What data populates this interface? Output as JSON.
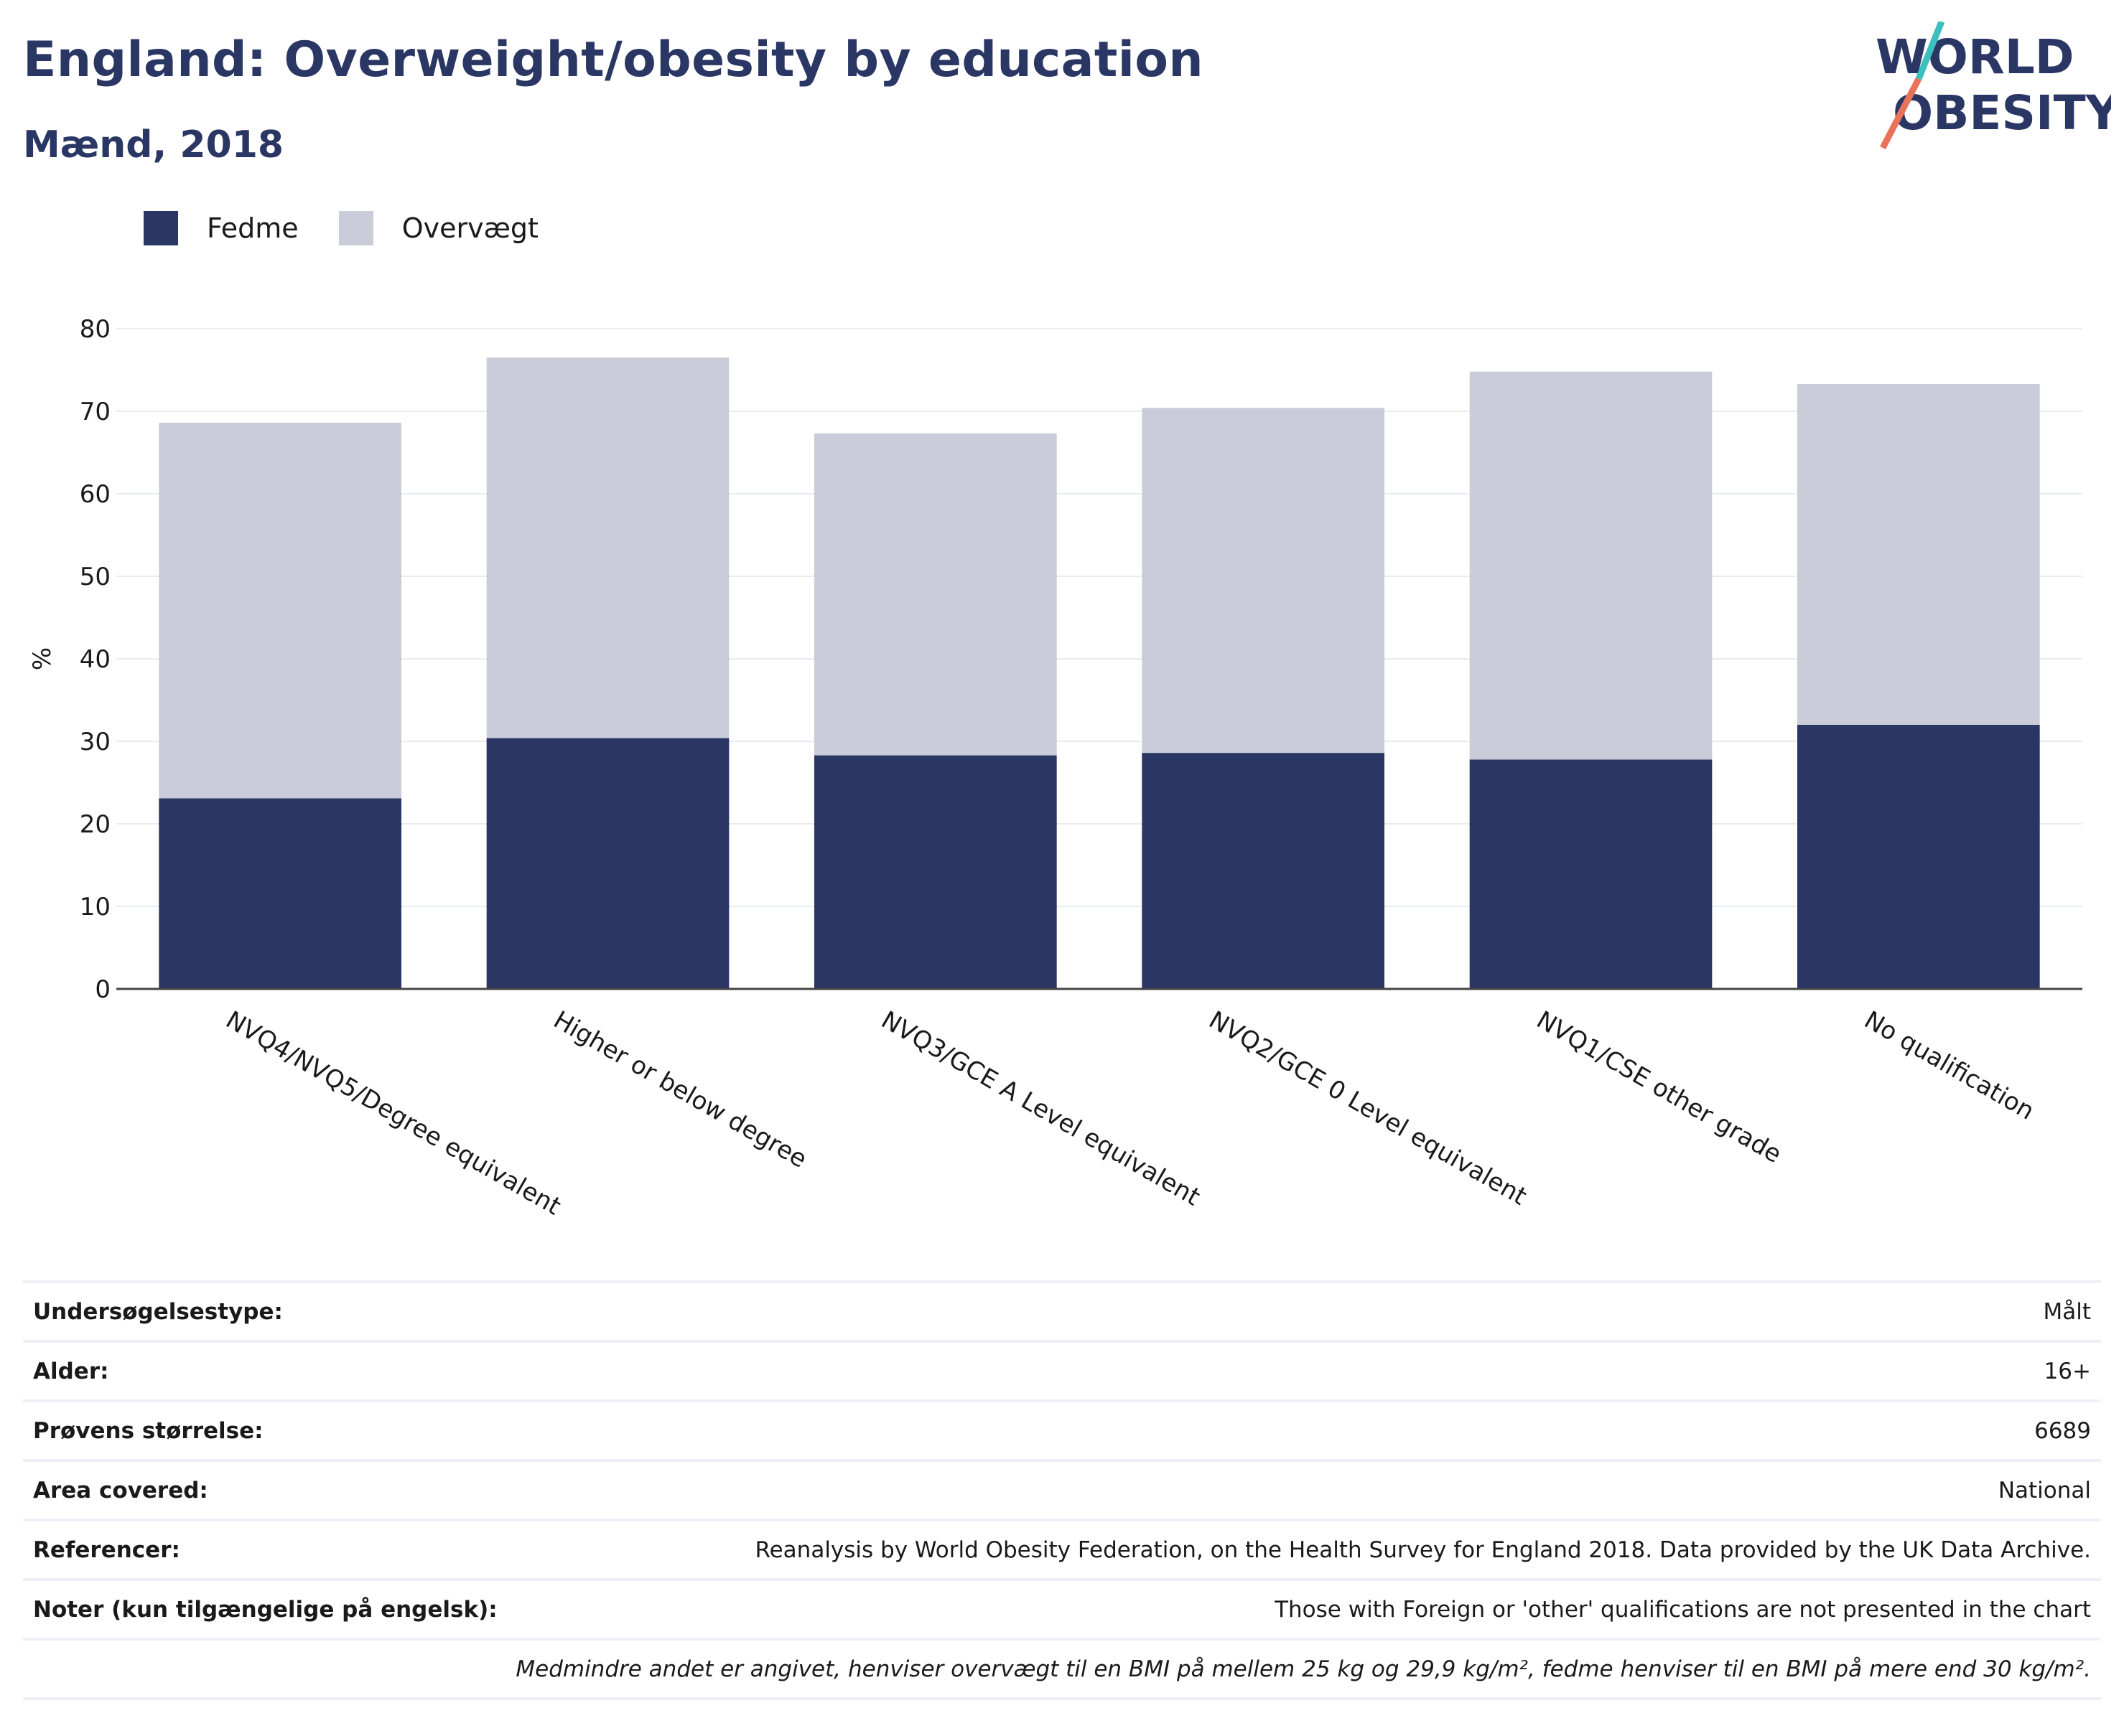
{
  "title": "England: Overweight/obesity by education",
  "subtitle": "Mænd, 2018",
  "logo": {
    "text_line1": "WORLD",
    "text_line2": "OBESITY"
  },
  "colors": {
    "obesity": "#2a3663",
    "overweight": "#cacdd9",
    "title": "#2a3663",
    "logo_teal": "#3bbfbf",
    "logo_coral": "#e8735a"
  },
  "legend": [
    {
      "label": "Fedme",
      "color": "#2a3663"
    },
    {
      "label": "Overvægt",
      "color": "#cacdd9"
    }
  ],
  "chart_data": {
    "type": "bar",
    "stacked": true,
    "categories": [
      "NVQ4/NVQ5/Degree equivalent",
      "Higher or below degree",
      "NVQ3/GCE A Level equivalent",
      "NVQ2/GCE 0 Level equivalent",
      "NVQ1/CSE other grade",
      "No qualification"
    ],
    "series": [
      {
        "name": "Fedme",
        "values": [
          23.1,
          30.4,
          28.3,
          28.6,
          27.8,
          32.0
        ]
      },
      {
        "name": "Overvægt",
        "values": [
          45.5,
          46.1,
          39.0,
          41.8,
          47.0,
          41.3
        ]
      }
    ],
    "ylabel": "%",
    "xlabel": "",
    "ylim": [
      0,
      80
    ],
    "yticks": [
      0,
      10,
      20,
      30,
      40,
      50,
      60,
      70,
      80
    ],
    "grid": true,
    "legend_position": "top-left"
  },
  "meta": [
    {
      "label": "Undersøgelsestype:",
      "value": "Målt"
    },
    {
      "label": "Alder:",
      "value": "16+"
    },
    {
      "label": "Prøvens størrelse:",
      "value": "6689"
    },
    {
      "label": "Area covered:",
      "value": "National"
    },
    {
      "label": "Referencer:",
      "value": "Reanalysis by World Obesity Federation, on the Health Survey for England 2018. Data provided by the UK Data Archive."
    },
    {
      "label": "Noter (kun tilgængelige på engelsk):",
      "value": "Those with Foreign or 'other' qualifications are not presented in the chart"
    }
  ],
  "footnote": "Medmindre andet er angivet, henviser overvægt til en BMI på mellem 25 kg og 29,9 kg/m², fedme henviser til en BMI på mere end 30 kg/m²."
}
